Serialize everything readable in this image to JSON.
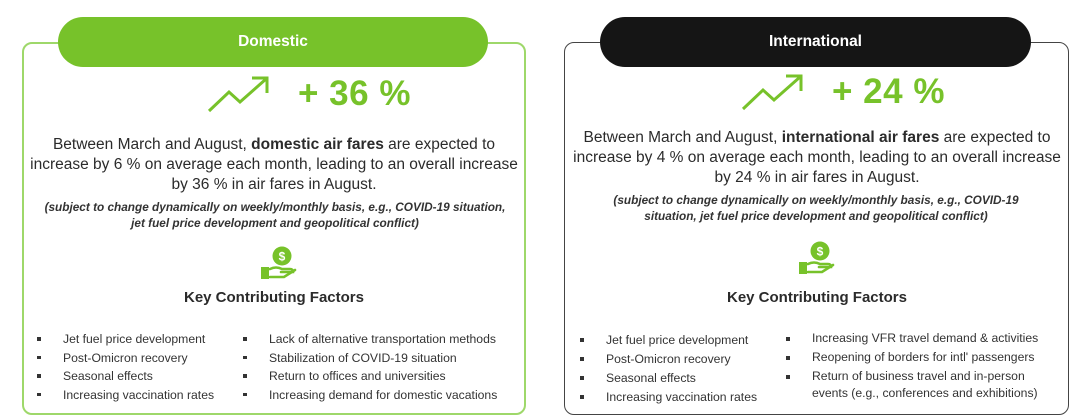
{
  "domestic": {
    "header": "Domestic",
    "percent": "+ 36 %",
    "para_before": "Between March and August, ",
    "para_bold": "domestic air fares",
    "para_after": " are expected to increase by 6 % on average each month, leading to an overall increase by 36 % in air fares in August.",
    "note": "(subject to change dynamically on weekly/monthly basis, e.g., COVID-19 situation, jet fuel price development and geopolitical conflict)",
    "factors_title": "Key Contributing Factors",
    "factors_left": [
      "Jet fuel price development",
      "Post-Omicron recovery",
      "Seasonal effects",
      "Increasing vaccination rates"
    ],
    "factors_right": [
      "Lack of alternative transportation methods",
      "Stabilization of COVID-19 situation",
      "Return to offices and universities",
      "Increasing demand for domestic vacations"
    ]
  },
  "international": {
    "header": "International",
    "percent": "+ 24 %",
    "para_before": "Between March and August, ",
    "para_bold": "international air fares",
    "para_after": " are expected to increase by 4 % on average each month, leading to an overall increase by 24 % in air fares in August.",
    "note": "(subject to change dynamically on weekly/monthly basis, e.g., COVID-19 situation, jet fuel price development and geopolitical conflict)",
    "factors_title": "Key Contributing Factors",
    "factors_left": [
      "Jet fuel price development",
      "Post-Omicron recovery",
      "Seasonal effects",
      "Increasing vaccination rates"
    ],
    "factors_right": [
      "Increasing VFR travel demand & activities",
      "Reopening of borders for intl' passengers",
      "Return of business travel and in-person events (e.g., conferences and exhibitions)"
    ]
  },
  "colors": {
    "accent_green": "#77c22a",
    "border_green": "#9ed86a",
    "dark_pill": "#151515"
  },
  "icons": [
    "trend-up-arrow-icon",
    "money-hand-icon"
  ]
}
